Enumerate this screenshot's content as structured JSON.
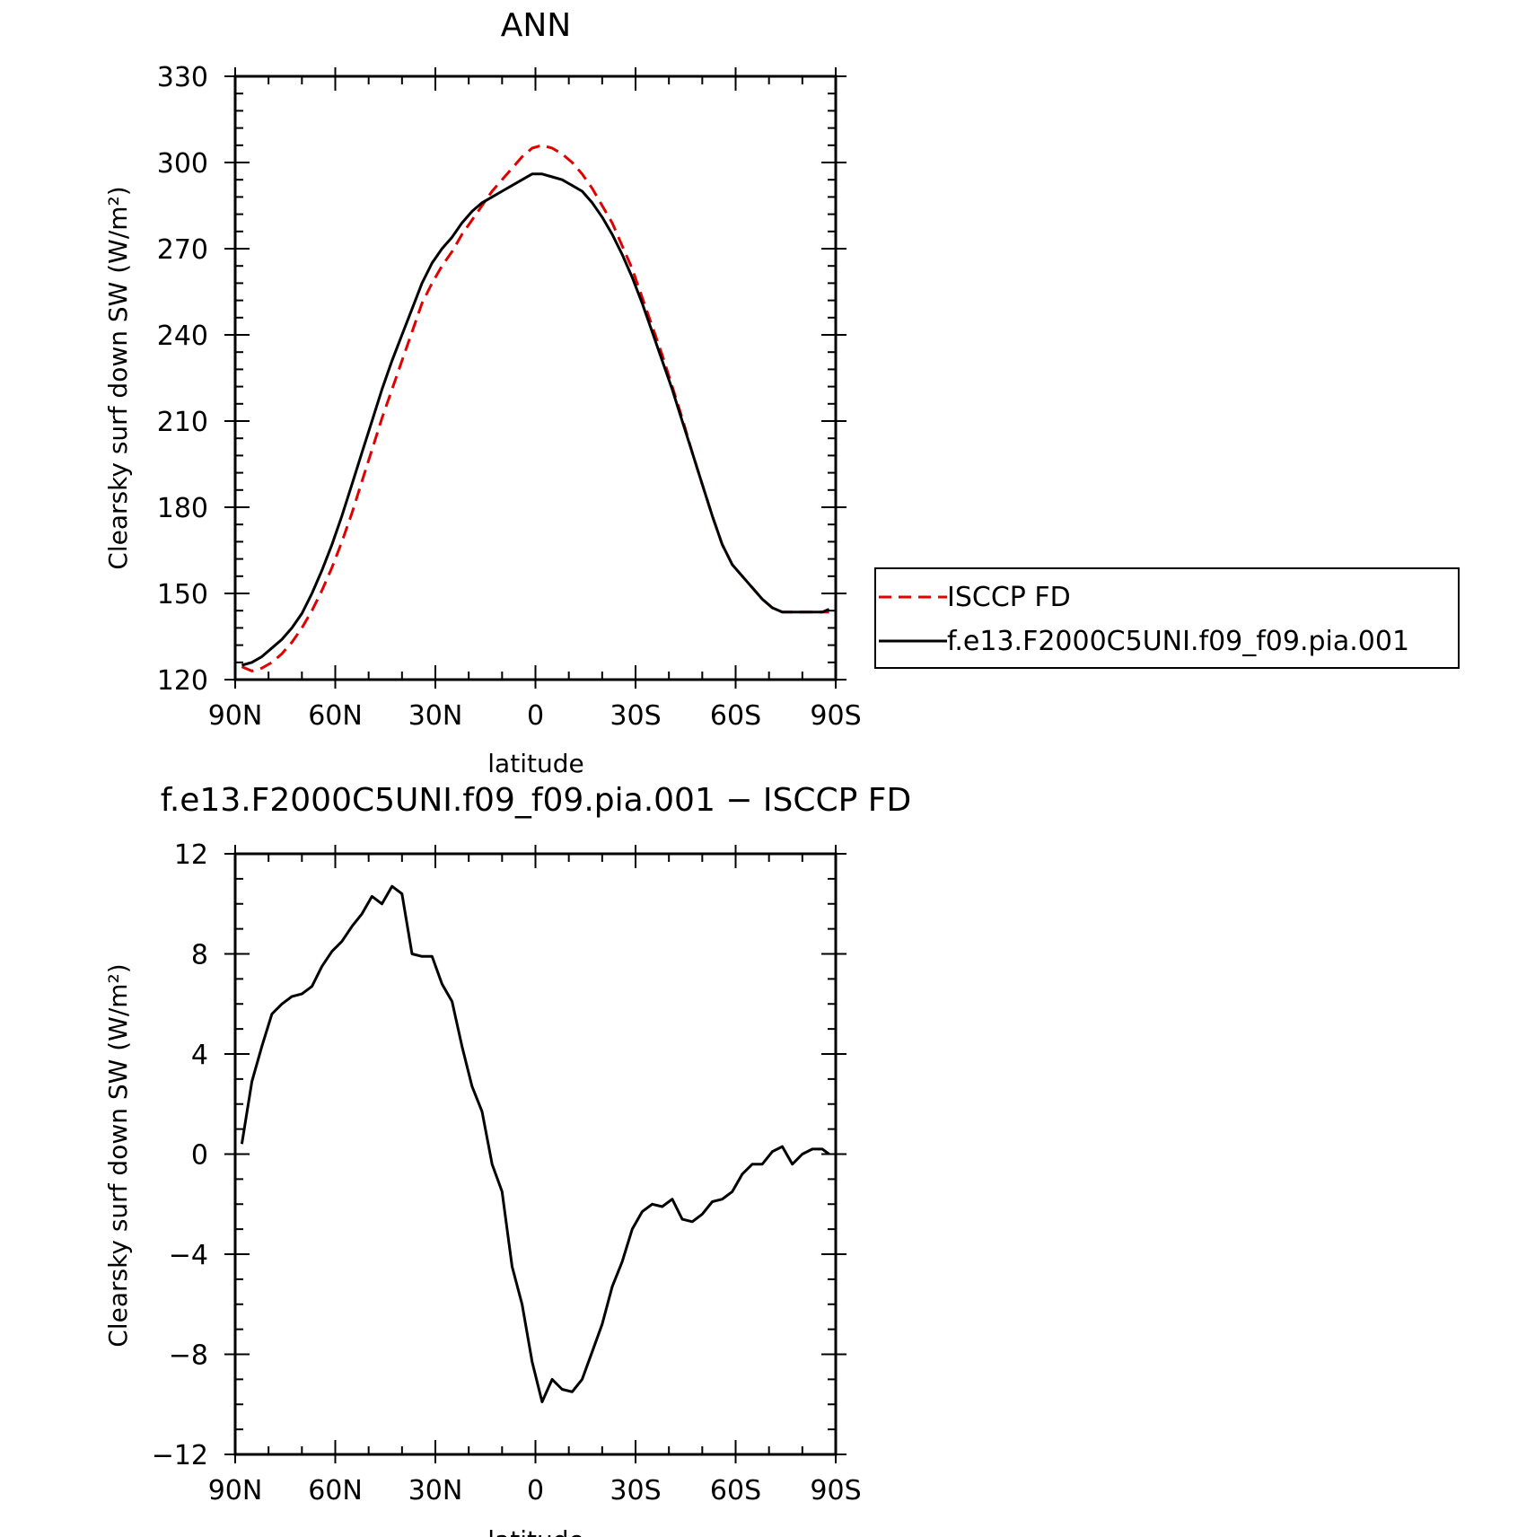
{
  "chart_data": [
    {
      "type": "line",
      "title": "ANN",
      "xlabel": "latitude",
      "ylabel": "Clearsky surf down SW (W/m²)",
      "xlim": [
        -90,
        90
      ],
      "ylim": [
        120,
        330
      ],
      "xticks": [
        -90,
        -60,
        -30,
        0,
        30,
        60,
        90
      ],
      "xticklabels": [
        "90N",
        "60N",
        "30N",
        "0",
        "30S",
        "60S",
        "90S"
      ],
      "yticks": [
        120,
        150,
        180,
        210,
        240,
        270,
        300,
        330
      ],
      "yticklabels": [
        "120",
        "150",
        "180",
        "210",
        "240",
        "270",
        "300",
        "330"
      ],
      "legend_position": "right",
      "x": [
        -88,
        -85,
        -82,
        -79,
        -76,
        -73,
        -70,
        -67,
        -64,
        -61,
        -58,
        -55,
        -52,
        -49,
        -46,
        -43,
        -40,
        -37,
        -34,
        -31,
        -28,
        -25,
        -22,
        -19,
        -16,
        -13,
        -10,
        -7,
        -4,
        -1,
        2,
        5,
        8,
        11,
        14,
        17,
        20,
        23,
        26,
        29,
        32,
        35,
        38,
        41,
        44,
        47,
        50,
        53,
        56,
        59,
        62,
        65,
        68,
        71,
        74,
        77,
        80,
        83,
        86,
        88
      ],
      "series": [
        {
          "name": "ISCCP FD",
          "color": "#e00000",
          "style": "dashed",
          "values": [
            124.5,
            123,
            124,
            126,
            129,
            133,
            138,
            144,
            151,
            159,
            168,
            178,
            189,
            200,
            211,
            221,
            231,
            241,
            251,
            258,
            264,
            269,
            275,
            280,
            285,
            290,
            294,
            298,
            302,
            305,
            306,
            305,
            303,
            300,
            296,
            291,
            285,
            279,
            271,
            263,
            253,
            243,
            233,
            222,
            211,
            199,
            188,
            177,
            167,
            160,
            156,
            152,
            148,
            145,
            143.5,
            143.5,
            143.5,
            143.5,
            143.5,
            143.5
          ]
        },
        {
          "name": "f.e13.F2000C5UNI.f09_f09.pia.001",
          "color": "#000000",
          "style": "solid",
          "values": [
            125,
            126,
            128,
            131,
            134,
            138,
            143,
            150,
            158,
            167,
            177,
            188,
            199,
            210,
            221,
            231,
            240,
            249,
            258,
            265,
            270,
            274,
            279,
            283,
            286,
            288,
            290,
            292,
            294,
            296,
            296,
            295,
            294,
            292,
            290,
            286,
            281,
            275,
            268,
            260,
            251,
            241,
            231,
            221,
            210,
            199,
            188,
            177,
            167,
            160,
            156,
            152,
            148,
            145,
            143.5,
            143.5,
            143.5,
            143.5,
            143.5,
            144.5
          ]
        }
      ]
    },
    {
      "type": "line",
      "title": "f.e13.F2000C5UNI.f09_f09.pia.001 − ISCCP FD",
      "xlabel": "latitude",
      "ylabel": "Clearsky surf down SW (W/m²)",
      "xlim": [
        -90,
        90
      ],
      "ylim": [
        -12,
        12
      ],
      "xticks": [
        -90,
        -60,
        -30,
        0,
        30,
        60,
        90
      ],
      "xticklabels": [
        "90N",
        "60N",
        "30N",
        "0",
        "30S",
        "60S",
        "90S"
      ],
      "yticks": [
        -12,
        -8,
        -4,
        0,
        4,
        8,
        12
      ],
      "yticklabels": [
        "−12",
        "−8",
        "−4",
        "0",
        "4",
        "8",
        "12"
      ],
      "x": [
        -88,
        -85,
        -82,
        -79,
        -76,
        -73,
        -70,
        -67,
        -64,
        -61,
        -58,
        -55,
        -52,
        -49,
        -46,
        -43,
        -40,
        -37,
        -34,
        -31,
        -28,
        -25,
        -22,
        -19,
        -16,
        -13,
        -10,
        -7,
        -4,
        -1,
        2,
        5,
        8,
        11,
        14,
        17,
        20,
        23,
        26,
        29,
        32,
        35,
        38,
        41,
        44,
        47,
        50,
        53,
        56,
        59,
        62,
        65,
        68,
        71,
        74,
        77,
        80,
        83,
        86,
        88
      ],
      "series": [
        {
          "color": "#000000",
          "style": "solid",
          "values": [
            0.4,
            2.9,
            4.3,
            5.6,
            6.0,
            6.3,
            6.4,
            6.7,
            7.5,
            8.1,
            8.5,
            9.1,
            9.6,
            10.3,
            10.0,
            10.7,
            10.4,
            8.0,
            7.9,
            7.9,
            6.8,
            6.1,
            4.3,
            2.7,
            1.7,
            -0.4,
            -1.5,
            -4.5,
            -6.0,
            -8.3,
            -9.9,
            -9.0,
            -9.4,
            -9.5,
            -9.0,
            -7.9,
            -6.8,
            -5.3,
            -4.3,
            -3.0,
            -2.3,
            -2.0,
            -2.1,
            -1.8,
            -2.6,
            -2.7,
            -2.4,
            -1.9,
            -1.8,
            -1.5,
            -0.8,
            -0.4,
            -0.4,
            0.1,
            0.3,
            -0.4,
            0.0,
            0.2,
            0.2,
            0.0
          ]
        }
      ]
    }
  ]
}
